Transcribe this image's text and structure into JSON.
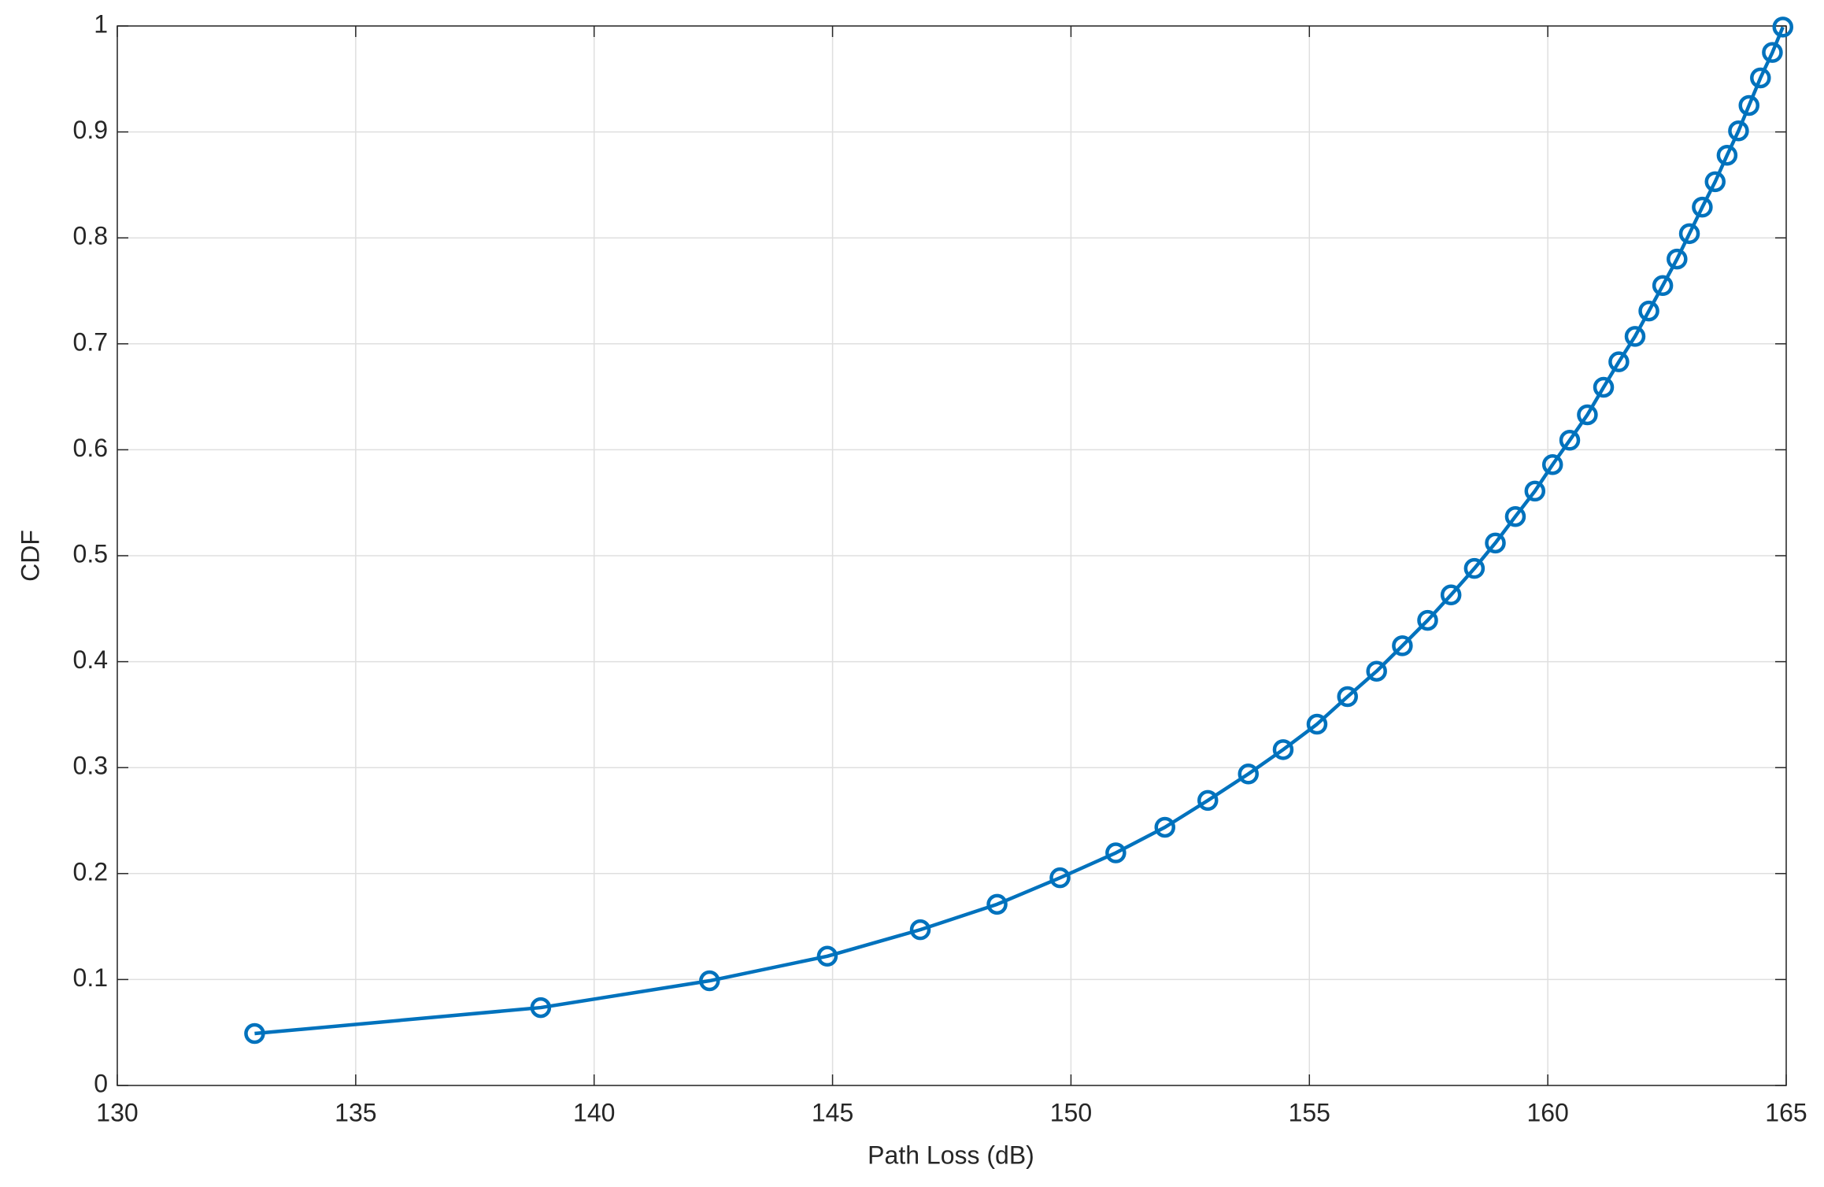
{
  "chart_data": {
    "type": "line",
    "xlabel": "Path Loss (dB)",
    "ylabel": "CDF",
    "xlim": [
      130,
      165
    ],
    "ylim": [
      0,
      1
    ],
    "xticks": [
      130,
      135,
      140,
      145,
      150,
      155,
      160,
      165
    ],
    "yticks": [
      0,
      0.1,
      0.2,
      0.3,
      0.4,
      0.5,
      0.6,
      0.7,
      0.8,
      0.9,
      1
    ],
    "grid": true,
    "series": [
      {
        "color": "#0072BD",
        "x": [
          132.88,
          138.88,
          142.42,
          144.89,
          146.84,
          148.45,
          149.77,
          150.94,
          151.97,
          152.87,
          153.72,
          154.45,
          155.16,
          155.8,
          156.41,
          156.95,
          157.48,
          157.97,
          158.46,
          158.9,
          159.32,
          159.73,
          160.1,
          160.46,
          160.83,
          161.17,
          161.49,
          161.83,
          162.12,
          162.41,
          162.71,
          162.97,
          163.24,
          163.51,
          163.76,
          164.0,
          164.22,
          164.46,
          164.71,
          164.93
        ],
        "values": [
          0.049,
          0.0735,
          0.0988,
          0.122,
          0.147,
          0.171,
          0.196,
          0.2195,
          0.2437,
          0.269,
          0.294,
          0.317,
          0.341,
          0.367,
          0.391,
          0.415,
          0.439,
          0.463,
          0.488,
          0.512,
          0.537,
          0.561,
          0.586,
          0.609,
          0.633,
          0.659,
          0.683,
          0.707,
          0.731,
          0.755,
          0.78,
          0.804,
          0.829,
          0.853,
          0.878,
          0.901,
          0.925,
          0.951,
          0.975,
          0.999
        ]
      }
    ]
  }
}
